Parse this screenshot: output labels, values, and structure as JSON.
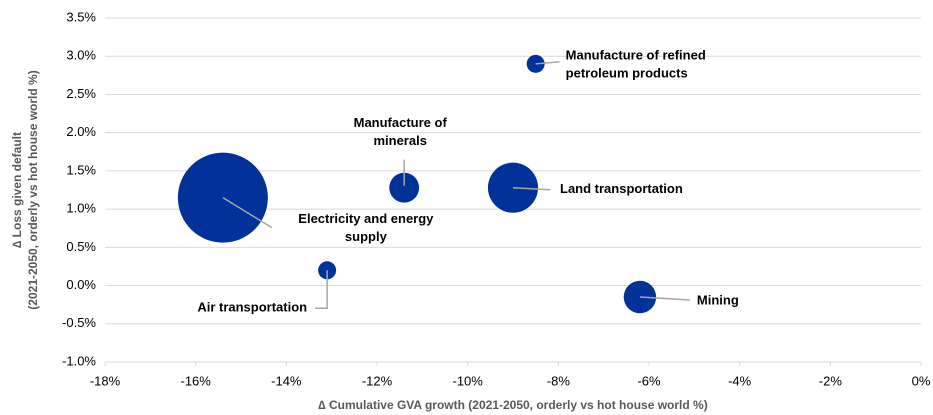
{
  "chart_data": {
    "type": "scatter",
    "x_label": "∆ Cumulative GVA growth (2021-2050, orderly vs hot house world %)",
    "y_label": [
      "∆ Loss given default",
      "(2021-2050, orderly vs hot house world %)"
    ],
    "labels": [
      [
        "Electricity and energy",
        "supply"
      ],
      [
        "Air transportation"
      ],
      [
        "Manufacture of",
        "minerals"
      ],
      [
        "Land transportation"
      ],
      [
        "Manufacture of refined",
        "petroleum products"
      ],
      [
        "Mining"
      ]
    ],
    "x": [
      -15.4,
      -13.1,
      -11.4,
      -9.0,
      -8.5,
      -6.2
    ],
    "values": [
      1.15,
      0.2,
      1.28,
      1.28,
      2.9,
      -0.15
    ],
    "sizes": [
      100,
      4,
      11,
      31,
      4,
      13
    ],
    "color": "#003299",
    "xlim": [
      -18,
      0
    ],
    "xticks": [
      {
        "value": -18,
        "label": "-18%"
      },
      {
        "value": -16,
        "label": "-16%"
      },
      {
        "value": -14,
        "label": "-14%"
      },
      {
        "value": -12,
        "label": "-12%"
      },
      {
        "value": -10,
        "label": "-10%"
      },
      {
        "value": -8,
        "label": "-8%"
      },
      {
        "value": -6,
        "label": "-6%"
      },
      {
        "value": -4,
        "label": "-4%"
      },
      {
        "value": -2,
        "label": "-2%"
      },
      {
        "value": 0,
        "label": "0%"
      }
    ],
    "ylim": [
      -1.0,
      3.5
    ],
    "yticks": [
      {
        "value": -1.0,
        "label": "-1.0%"
      },
      {
        "value": -0.5,
        "label": "-0.5%"
      },
      {
        "value": 0.0,
        "label": "0.0%"
      },
      {
        "value": 0.5,
        "label": "0.5%"
      },
      {
        "value": 1.0,
        "label": "1.0%"
      },
      {
        "value": 1.5,
        "label": "1.5%"
      },
      {
        "value": 2.0,
        "label": "2.0%"
      },
      {
        "value": 2.5,
        "label": "2.5%"
      },
      {
        "value": 3.0,
        "label": "3.0%"
      },
      {
        "value": 3.5,
        "label": "3.5%"
      }
    ],
    "grid": true
  }
}
